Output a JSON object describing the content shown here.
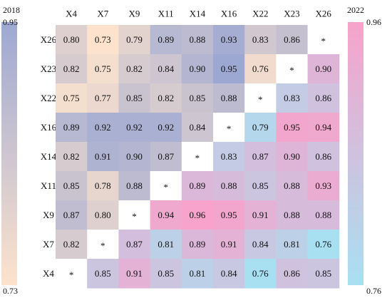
{
  "chart_data": {
    "type": "heatmap",
    "columns": [
      "X4",
      "X7",
      "X9",
      "X11",
      "X14",
      "X16",
      "X22",
      "X23",
      "X26"
    ],
    "rows": [
      "X26",
      "X23",
      "X22",
      "X16",
      "X14",
      "X11",
      "X9",
      "X7",
      "X4"
    ],
    "values": [
      [
        "0.80",
        "0.73",
        "0.79",
        "0.89",
        "0.88",
        "0.93",
        "0.83",
        "0.86",
        "*"
      ],
      [
        "0.82",
        "0.75",
        "0.82",
        "0.84",
        "0.90",
        "0.95",
        "0.76",
        "*",
        "0.90"
      ],
      [
        "0.75",
        "0.77",
        "0.85",
        "0.82",
        "0.85",
        "0.88",
        "*",
        "0.83",
        "0.86"
      ],
      [
        "0.89",
        "0.92",
        "0.92",
        "0.92",
        "0.84",
        "*",
        "0.79",
        "0.95",
        "0.94"
      ],
      [
        "0.82",
        "0.91",
        "0.90",
        "0.87",
        "*",
        "0.83",
        "0.87",
        "0.90",
        "0.86"
      ],
      [
        "0.85",
        "0.78",
        "0.88",
        "*",
        "0.89",
        "0.88",
        "0.85",
        "0.88",
        "0.93"
      ],
      [
        "0.87",
        "0.80",
        "*",
        "0.94",
        "0.96",
        "0.95",
        "0.91",
        "0.88",
        "0.88"
      ],
      [
        "0.82",
        "*",
        "0.87",
        "0.81",
        "0.89",
        "0.91",
        "0.84",
        "0.81",
        "0.76"
      ],
      [
        "*",
        "0.85",
        "0.91",
        "0.85",
        "0.81",
        "0.84",
        "0.76",
        "0.86",
        "0.85"
      ]
    ],
    "colorbar_left": {
      "label": "2018",
      "max": "0.95",
      "min": "0.73",
      "min_value": 0.73,
      "max_value": 0.95,
      "color_min": "#fde3cd",
      "color_max": "#9da8d2"
    },
    "colorbar_right": {
      "label": "2022",
      "max": "0.96",
      "min": "0.76",
      "min_value": 0.76,
      "max_value": 0.96,
      "color_min": "#a8e0f2",
      "color_max": "#f7a3cb"
    },
    "lower_triangle_series": "2018",
    "upper_triangle_series": "2022"
  }
}
